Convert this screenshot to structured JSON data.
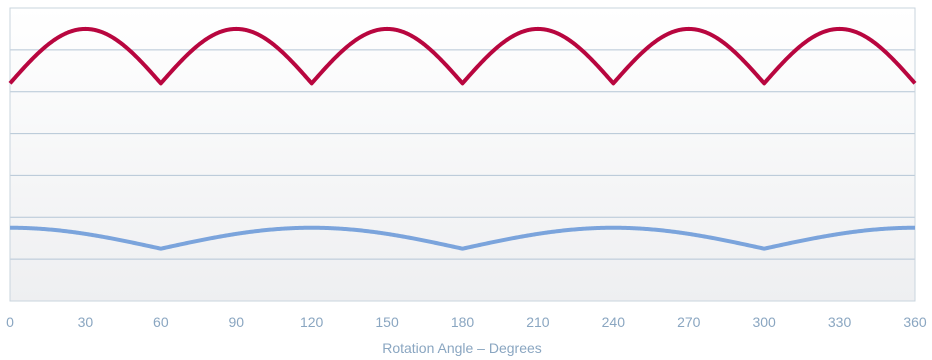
{
  "chart_data": {
    "type": "line",
    "xlabel": "Rotation Angle – Degrees",
    "xlim": [
      0,
      360
    ],
    "ylim": [
      0,
      7
    ],
    "grid": true,
    "x_ticks": [
      "0",
      "30",
      "60",
      "90",
      "120",
      "150",
      "180",
      "210",
      "240",
      "270",
      "300",
      "330",
      "360"
    ],
    "series": [
      {
        "color": "#b8063f",
        "period_deg": 60,
        "peak_x": 30,
        "max": 6.5,
        "min": 5.2
      },
      {
        "color": "#7ba4dc",
        "period_deg": 120,
        "peak_x": 0,
        "max": 1.75,
        "min": 1.25
      }
    ]
  },
  "colors": {
    "background_top": "#ffffff",
    "background_bottom": "#eeeff1",
    "gridline": "#b5c6d6",
    "frame": "#c9d4de",
    "tick_text": "#8aa6c1"
  }
}
